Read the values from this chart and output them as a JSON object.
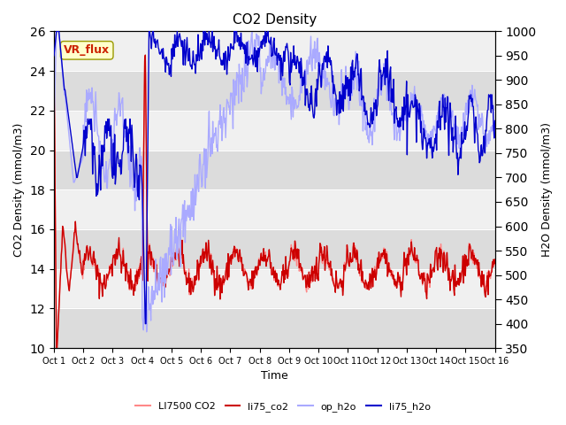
{
  "title": "CO2 Density",
  "xlabel": "Time",
  "ylabel_left": "CO2 Density (mmol/m3)",
  "ylabel_right": "H2O Density (mmol/m3)",
  "ylim_left": [
    10,
    26
  ],
  "ylim_right": [
    350,
    1000
  ],
  "yticks_left": [
    10,
    12,
    14,
    16,
    18,
    20,
    22,
    24,
    26
  ],
  "yticks_right": [
    350,
    400,
    450,
    500,
    550,
    600,
    650,
    700,
    750,
    800,
    850,
    900,
    950,
    1000
  ],
  "xtick_labels": [
    "Oct 1",
    "Oct 2",
    "Oct 3",
    "Oct 4",
    "Oct 5",
    "Oct 6",
    "Oct 7",
    "Oct 8",
    "Oct 9",
    "Oct 10",
    "Oct 11",
    "Oct 12",
    "Oct 13",
    "Oct 14",
    "Oct 15",
    "Oct 16"
  ],
  "legend_labels": [
    "LI7500 CO2",
    "li75_co2",
    "op_h2o",
    "li75_h2o"
  ],
  "color_li7500": "#ff8888",
  "color_li75_co2": "#cc0000",
  "color_op_h2o": "#aaaaff",
  "color_li75_h2o": "#0000cc",
  "vr_flux_label": "VR_flux",
  "vr_flux_color": "#cc2200",
  "vr_flux_bg": "#ffffcc",
  "axes_bg": "#f0f0f0",
  "band_color": "#d8d8d8"
}
